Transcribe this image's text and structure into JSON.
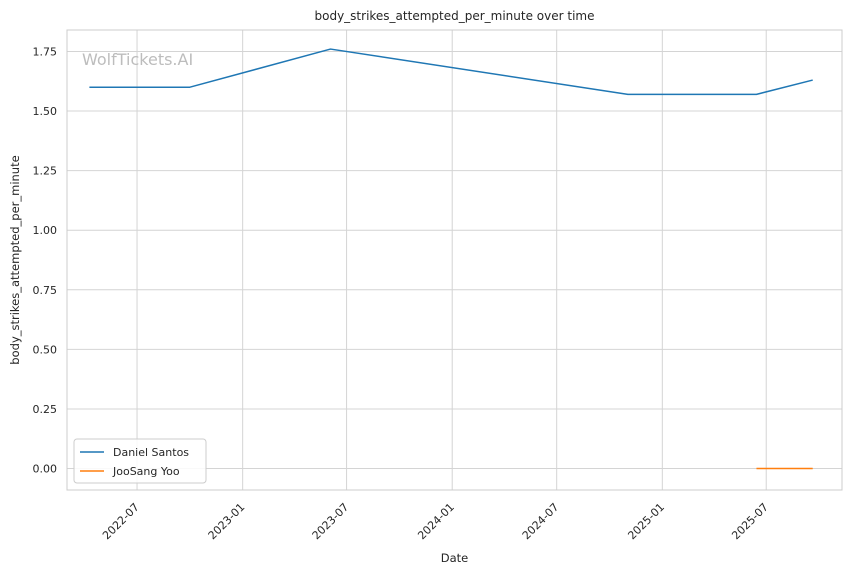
{
  "chart_data": {
    "type": "line",
    "title": "body_strikes_attempted_per_minute over time",
    "xlabel": "Date",
    "ylabel": "body_strikes_attempted_per_minute",
    "watermark": "WolfTickets.AI",
    "x_axis_type": "date",
    "xlim": [
      "2022-03-01",
      "2025-11-10"
    ],
    "ylim": [
      -0.09,
      1.84
    ],
    "x_ticks": [
      "2022-07",
      "2023-01",
      "2023-07",
      "2024-01",
      "2024-07",
      "2025-01",
      "2025-07"
    ],
    "y_ticks": [
      0.0,
      0.25,
      0.5,
      0.75,
      1.0,
      1.25,
      1.5,
      1.75
    ],
    "grid": true,
    "legend_position": "lower-left",
    "series": [
      {
        "name": "Daniel Santos",
        "color": "#1f77b4",
        "x": [
          "2022-04-09",
          "2022-10-01",
          "2023-06-03",
          "2024-11-02",
          "2025-06-14",
          "2025-09-20"
        ],
        "y": [
          1.6,
          1.6,
          1.76,
          1.57,
          1.57,
          1.63
        ]
      },
      {
        "name": "JooSang Yoo",
        "color": "#ff7f0e",
        "x": [
          "2025-06-14",
          "2025-09-20"
        ],
        "y": [
          0.0,
          0.0
        ]
      }
    ]
  }
}
